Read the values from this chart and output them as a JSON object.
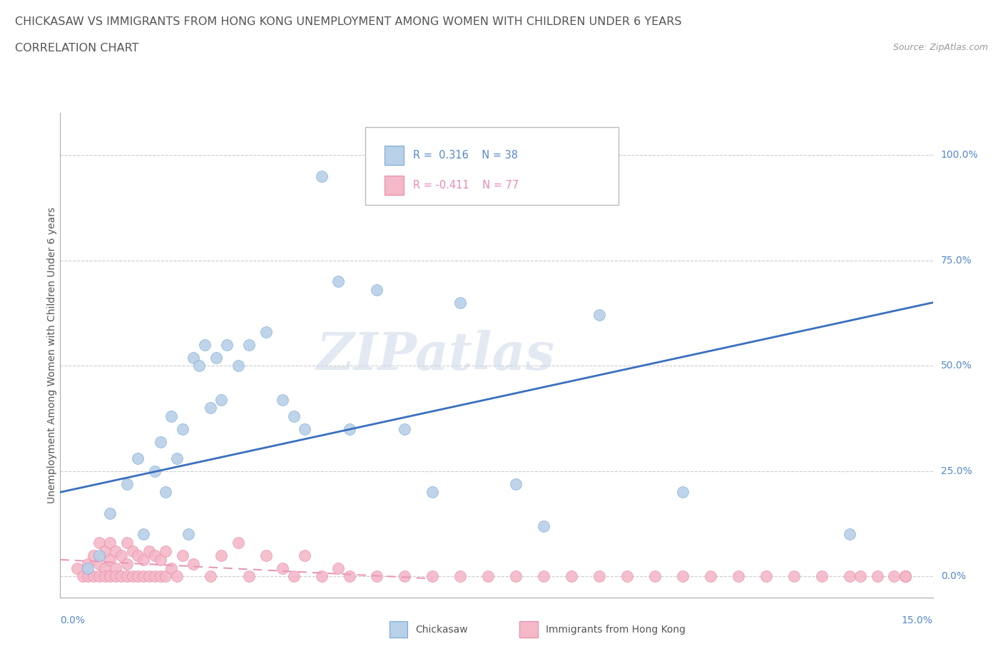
{
  "title_line1": "CHICKASAW VS IMMIGRANTS FROM HONG KONG UNEMPLOYMENT AMONG WOMEN WITH CHILDREN UNDER 6 YEARS",
  "title_line2": "CORRELATION CHART",
  "source_text": "Source: ZipAtlas.com",
  "ylabel": "Unemployment Among Women with Children Under 6 years",
  "watermark": "ZIPatlas",
  "legend_blue_R": "0.316",
  "legend_blue_N": "38",
  "legend_pink_R": "-0.411",
  "legend_pink_N": "77",
  "legend_blue_label": "Chickasaw",
  "legend_pink_label": "Immigrants from Hong Kong",
  "blue_color": "#b8d0e8",
  "blue_edge_color": "#7aaad4",
  "pink_color": "#f4b8c8",
  "pink_edge_color": "#e888a8",
  "blue_line_color": "#3a6fbd",
  "pink_line_color": "#e898b8",
  "grid_color": "#cccccc",
  "text_color": "#555555",
  "right_label_color": "#5588cc",
  "ytick_labels": [
    "0.0%",
    "25.0%",
    "50.0%",
    "75.0%",
    "100.0%"
  ],
  "ytick_values": [
    0.0,
    0.25,
    0.5,
    0.75,
    1.0
  ],
  "blue_scatter_x": [
    0.003,
    0.005,
    0.007,
    0.01,
    0.012,
    0.013,
    0.015,
    0.016,
    0.017,
    0.018,
    0.019,
    0.02,
    0.021,
    0.022,
    0.023,
    0.024,
    0.025,
    0.026,
    0.027,
    0.028,
    0.03,
    0.032,
    0.035,
    0.038,
    0.04,
    0.042,
    0.045,
    0.048,
    0.05,
    0.055,
    0.06,
    0.065,
    0.07,
    0.08,
    0.085,
    0.095,
    0.11,
    0.14
  ],
  "blue_scatter_y": [
    0.02,
    0.05,
    0.15,
    0.22,
    0.28,
    0.1,
    0.25,
    0.32,
    0.2,
    0.38,
    0.28,
    0.35,
    0.1,
    0.52,
    0.5,
    0.55,
    0.4,
    0.52,
    0.42,
    0.55,
    0.5,
    0.55,
    0.58,
    0.42,
    0.38,
    0.35,
    0.95,
    0.7,
    0.35,
    0.68,
    0.35,
    0.2,
    0.65,
    0.22,
    0.12,
    0.62,
    0.2,
    0.1
  ],
  "pink_scatter_x": [
    0.001,
    0.002,
    0.003,
    0.003,
    0.004,
    0.004,
    0.005,
    0.005,
    0.005,
    0.006,
    0.006,
    0.006,
    0.007,
    0.007,
    0.007,
    0.008,
    0.008,
    0.008,
    0.009,
    0.009,
    0.01,
    0.01,
    0.01,
    0.011,
    0.011,
    0.012,
    0.012,
    0.013,
    0.013,
    0.014,
    0.014,
    0.015,
    0.015,
    0.016,
    0.016,
    0.017,
    0.017,
    0.018,
    0.019,
    0.02,
    0.022,
    0.025,
    0.027,
    0.03,
    0.032,
    0.035,
    0.038,
    0.04,
    0.042,
    0.045,
    0.048,
    0.05,
    0.055,
    0.06,
    0.065,
    0.07,
    0.075,
    0.08,
    0.085,
    0.09,
    0.095,
    0.1,
    0.105,
    0.11,
    0.115,
    0.12,
    0.125,
    0.13,
    0.135,
    0.14,
    0.142,
    0.145,
    0.148,
    0.15,
    0.15,
    0.15,
    0.15
  ],
  "pink_scatter_y": [
    0.02,
    0.0,
    0.03,
    0.0,
    0.05,
    0.0,
    0.08,
    0.03,
    0.0,
    0.06,
    0.02,
    0.0,
    0.08,
    0.04,
    0.0,
    0.06,
    0.02,
    0.0,
    0.05,
    0.0,
    0.08,
    0.03,
    0.0,
    0.06,
    0.0,
    0.05,
    0.0,
    0.04,
    0.0,
    0.06,
    0.0,
    0.05,
    0.0,
    0.04,
    0.0,
    0.06,
    0.0,
    0.02,
    0.0,
    0.05,
    0.03,
    0.0,
    0.05,
    0.08,
    0.0,
    0.05,
    0.02,
    0.0,
    0.05,
    0.0,
    0.02,
    0.0,
    0.0,
    0.0,
    0.0,
    0.0,
    0.0,
    0.0,
    0.0,
    0.0,
    0.0,
    0.0,
    0.0,
    0.0,
    0.0,
    0.0,
    0.0,
    0.0,
    0.0,
    0.0,
    0.0,
    0.0,
    0.0,
    0.0,
    0.0,
    0.0,
    0.0
  ],
  "xmin": -0.002,
  "xmax": 0.155,
  "ymin": -0.05,
  "ymax": 1.1,
  "blue_line_x0": -0.002,
  "blue_line_x1": 0.155,
  "blue_line_y0": 0.2,
  "blue_line_y1": 0.65,
  "pink_line_x0": -0.002,
  "pink_line_x1": 0.065,
  "pink_line_y0": 0.04,
  "pink_line_y1": -0.005
}
